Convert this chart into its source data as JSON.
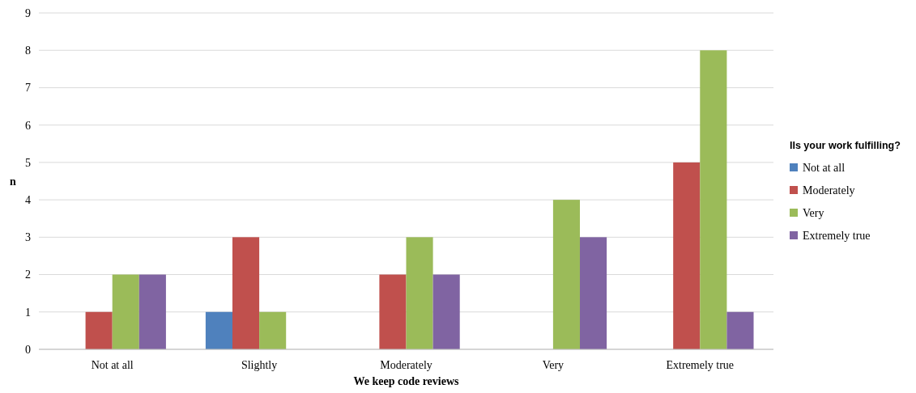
{
  "chart_data": {
    "type": "bar",
    "xlabel": "We keep code reviews",
    "ylabel": "n",
    "legend_title": "IIs your work fulfilling?",
    "categories": [
      "Not at all",
      "Slightly",
      "Moderately",
      "Very",
      "Extremely true"
    ],
    "series": [
      {
        "name": "Not at all",
        "color": "#4f81bd",
        "values": [
          0,
          1,
          0,
          0,
          0
        ]
      },
      {
        "name": "Moderately",
        "color": "#c0504d",
        "values": [
          1,
          3,
          2,
          0,
          5
        ]
      },
      {
        "name": "Very",
        "color": "#9bbb59",
        "values": [
          2,
          1,
          3,
          4,
          8
        ]
      },
      {
        "name": "Extremely true",
        "color": "#8064a2",
        "values": [
          2,
          0,
          2,
          3,
          1
        ]
      }
    ],
    "ylim": [
      0,
      9
    ],
    "yticks": [
      0,
      1,
      2,
      3,
      4,
      5,
      6,
      7,
      8,
      9
    ],
    "grid": "y",
    "legend": "right"
  }
}
